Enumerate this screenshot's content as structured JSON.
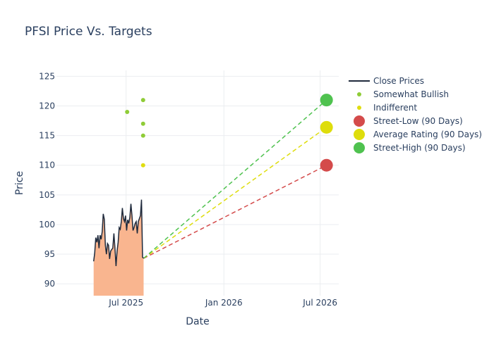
{
  "chart_data": {
    "type": "line",
    "title": "PFSI Price Vs. Targets",
    "xlabel": "Date",
    "ylabel": "Price",
    "ylim": [
      88,
      126
    ],
    "xlim": [
      "2025-02-20",
      "2026-08-05"
    ],
    "grid": true,
    "legend_placement": "right",
    "y_ticks": [
      90,
      95,
      100,
      105,
      110,
      115,
      120,
      125
    ],
    "x_ticks": [
      {
        "date": "2025-07-01",
        "label": "Jul 2025"
      },
      {
        "date": "2026-01-01",
        "label": "Jan 2026"
      },
      {
        "date": "2026-07-01",
        "label": "Jul 2026"
      }
    ],
    "close_prices": {
      "name": "Close Prices",
      "color": "#1f2a3c",
      "fill_color": "#f9b58f",
      "dates": [
        "2025-05-01",
        "2025-05-03",
        "2025-05-05",
        "2025-05-07",
        "2025-05-09",
        "2025-05-11",
        "2025-05-13",
        "2025-05-15",
        "2025-05-17",
        "2025-05-19",
        "2025-05-21",
        "2025-05-23",
        "2025-05-25",
        "2025-05-27",
        "2025-05-29",
        "2025-05-31",
        "2025-06-02",
        "2025-06-04",
        "2025-06-06",
        "2025-06-08",
        "2025-06-10",
        "2025-06-12",
        "2025-06-14",
        "2025-06-16",
        "2025-06-18",
        "2025-06-20",
        "2025-06-22",
        "2025-06-24",
        "2025-06-26",
        "2025-06-28",
        "2025-06-30",
        "2025-07-02",
        "2025-07-04",
        "2025-07-06",
        "2025-07-08",
        "2025-07-10",
        "2025-07-12",
        "2025-07-14",
        "2025-07-16",
        "2025-07-18",
        "2025-07-20",
        "2025-07-22",
        "2025-07-24",
        "2025-07-26",
        "2025-07-28",
        "2025-07-30",
        "2025-08-01",
        "2025-08-03"
      ],
      "values": [
        93.8,
        95.2,
        97.8,
        97.0,
        98.2,
        96.0,
        98.2,
        97.5,
        98.8,
        101.8,
        100.9,
        96.5,
        95.0,
        96.8,
        96.5,
        94.2,
        95.5,
        95.8,
        96.0,
        98.5,
        96.0,
        93.0,
        95.5,
        97.0,
        99.5,
        99.2,
        100.5,
        102.8,
        101.0,
        100.5,
        101.5,
        99.0,
        100.8,
        100.2,
        101.2,
        103.5,
        101.5,
        99.0,
        99.5,
        100.2,
        100.5,
        98.5,
        100.5,
        101.0,
        101.5,
        104.2,
        94.5,
        94.3
      ]
    },
    "analyst_points": [
      {
        "name": "Somewhat Bullish",
        "color": "#8fcc37",
        "points": [
          {
            "date": "2025-07-03",
            "value": 119
          },
          {
            "date": "2025-08-02",
            "value": 121
          },
          {
            "date": "2025-08-02",
            "value": 117
          },
          {
            "date": "2025-08-02",
            "value": 115
          }
        ]
      },
      {
        "name": "Indifferent",
        "color": "#e0dd10",
        "points": [
          {
            "date": "2025-08-02",
            "value": 110
          }
        ]
      }
    ],
    "targets": [
      {
        "name": "Street-Low (90 Days)",
        "color": "#d44b4b",
        "value": 110
      },
      {
        "name": "Average Rating (90 Days)",
        "color": "#dedd0c",
        "value": 116.4
      },
      {
        "name": "Street-High (90 Days)",
        "color": "#4fc24f",
        "value": 121
      }
    ],
    "target_start": {
      "date": "2025-08-03",
      "value": 94.3
    },
    "target_end_date": "2026-07-13"
  }
}
